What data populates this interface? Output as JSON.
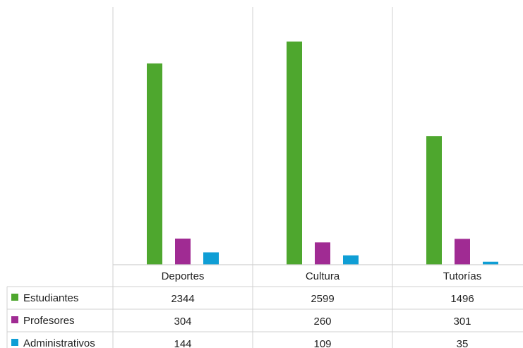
{
  "chart_data": {
    "type": "bar",
    "categories": [
      "Deportes",
      "Cultura",
      "Tutorías"
    ],
    "series": [
      {
        "name": "Estudiantes",
        "color": "#4ea72e",
        "values": [
          2344,
          2599,
          1496
        ]
      },
      {
        "name": "Profesores",
        "color": "#a02b93",
        "values": [
          304,
          260,
          301
        ]
      },
      {
        "name": "Administrativos",
        "color": "#0f9ed5",
        "values": [
          144,
          109,
          35
        ]
      }
    ],
    "ylim": [
      0,
      3000
    ],
    "grid": false,
    "legend": "data-table",
    "data_table": true
  }
}
